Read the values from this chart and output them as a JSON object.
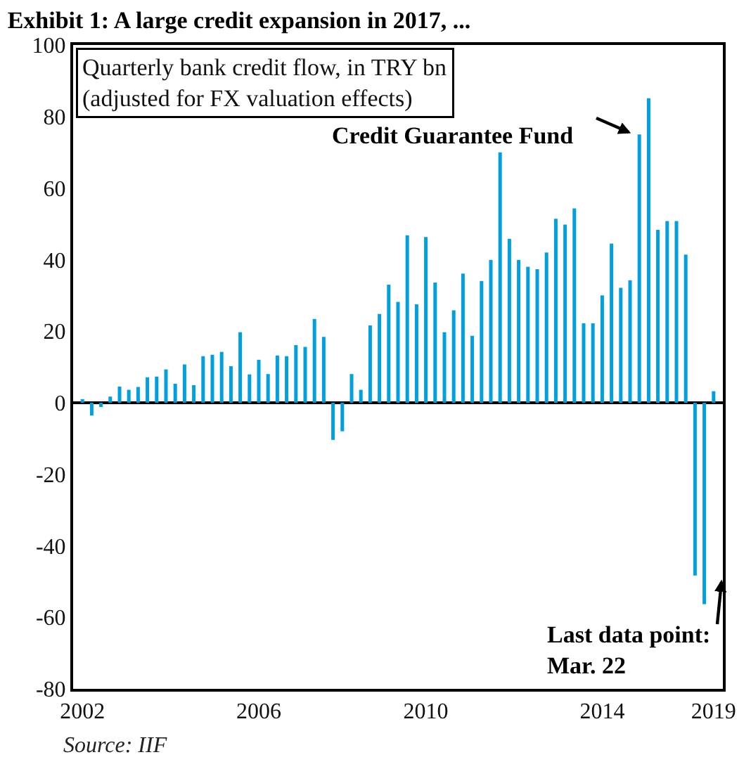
{
  "chart_data": {
    "type": "bar",
    "title": "Exhibit 1: A large credit expansion in 2017, ...",
    "subtitle": "Quarterly bank credit flow, in TRY bn\n(adjusted for FX valuation effects)",
    "categories": [
      "2002",
      null,
      null,
      null,
      null,
      null,
      null,
      null,
      null,
      null,
      null,
      null,
      null,
      null,
      null,
      null,
      null,
      null,
      null,
      "2006",
      null,
      null,
      null,
      null,
      null,
      null,
      null,
      null,
      null,
      null,
      null,
      null,
      null,
      null,
      null,
      null,
      null,
      "2010",
      null,
      null,
      null,
      null,
      null,
      null,
      null,
      null,
      null,
      null,
      null,
      null,
      null,
      null,
      null,
      null,
      null,
      null,
      "2014",
      null,
      null,
      null,
      null,
      null,
      null,
      null,
      null,
      null,
      null,
      null,
      "2019"
    ],
    "values": [
      1.0,
      -3.6,
      -1.2,
      1.7,
      4.5,
      3.6,
      4.4,
      7.1,
      7.3,
      9.3,
      5.3,
      10.7,
      4.9,
      13,
      13.4,
      14.2,
      10.2,
      19.7,
      7.9,
      12,
      8,
      13.2,
      13,
      16.1,
      15.6,
      23.4,
      18.4,
      -10.4,
      -8,
      8,
      3.6,
      21.6,
      24.8,
      33,
      28.2,
      46.8,
      27.5,
      46.3,
      33.6,
      19.7,
      25.8,
      36.1,
      18.7,
      34,
      39.9,
      70,
      45.8,
      39.9,
      38,
      37.3,
      42,
      51.4,
      49.8,
      54.3,
      22.2,
      22.2,
      30,
      44.5,
      32.1,
      34.2,
      75,
      85.1,
      48.3,
      50.8,
      50.8,
      41.4,
      -48.3,
      -56.3,
      3.2
    ],
    "color": "#009fdf",
    "ylim": [
      -80,
      100
    ],
    "yticks": [
      -80,
      -60,
      -40,
      -20,
      0,
      20,
      40,
      60,
      80,
      100
    ],
    "annotations": [
      "Credit Guarantee Fund",
      "Last data point:\nMar. 22",
      "Source: IIF"
    ]
  }
}
